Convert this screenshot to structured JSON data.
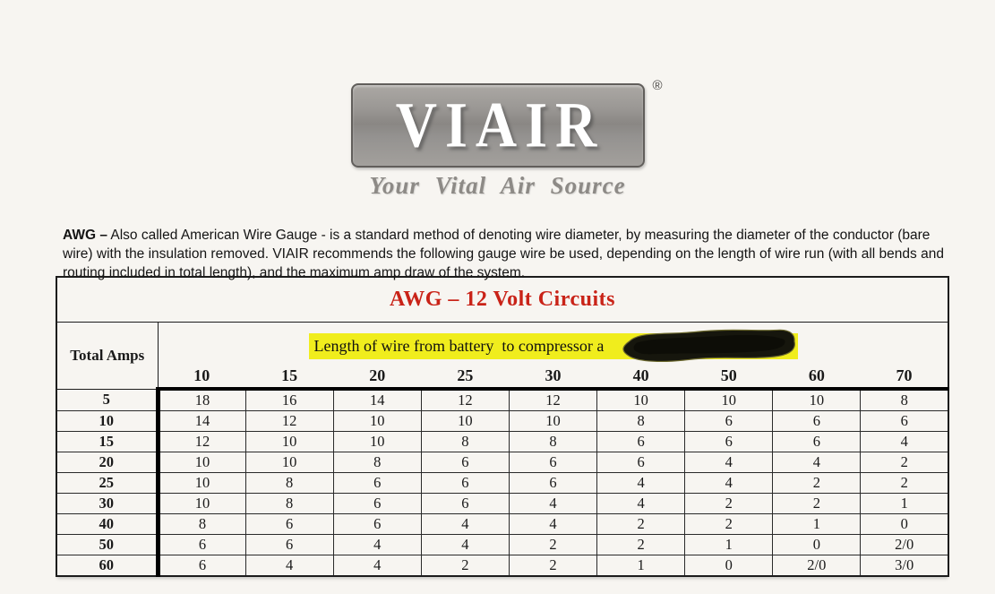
{
  "logo": {
    "brand": "VIAIR",
    "registered_mark": "®",
    "tagline": "Your Vital Air Source",
    "colors": {
      "box_gray": "#8a8784",
      "letters": "#ffffff",
      "tagline_gray": "#8d8a86"
    }
  },
  "intro": {
    "lead": "AWG –",
    "body": " Also called American Wire Gauge - is a standard method of denoting wire diameter, by measuring the diameter of the conductor (bare wire) with the insulation removed. VIAIR recommends the following gauge wire be used, depending on the length of wire run (with all bends and routing included in total length), and the maximum amp draw of the system."
  },
  "table": {
    "title": "AWG – 12 Volt Circuits",
    "title_color": "#c92318",
    "corner_header": "Total Amps",
    "span_header": {
      "text": "Length of wire from battery  to compressor a",
      "highlight_color": "#f0ed1d",
      "redaction": "black-marker-scribble"
    },
    "column_headers": [
      "10",
      "15",
      "20",
      "25",
      "30",
      "40",
      "50",
      "60",
      "70"
    ],
    "rows": [
      {
        "label": "5",
        "values": [
          "18",
          "16",
          "14",
          "12",
          "12",
          "10",
          "10",
          "10",
          "8"
        ]
      },
      {
        "label": "10",
        "values": [
          "14",
          "12",
          "10",
          "10",
          "10",
          "8",
          "6",
          "6",
          "6"
        ]
      },
      {
        "label": "15",
        "values": [
          "12",
          "10",
          "10",
          "8",
          "8",
          "6",
          "6",
          "6",
          "4"
        ]
      },
      {
        "label": "20",
        "values": [
          "10",
          "10",
          "8",
          "6",
          "6",
          "6",
          "4",
          "4",
          "2"
        ]
      },
      {
        "label": "25",
        "values": [
          "10",
          "8",
          "6",
          "6",
          "6",
          "4",
          "4",
          "2",
          "2"
        ]
      },
      {
        "label": "30",
        "values": [
          "10",
          "8",
          "6",
          "6",
          "4",
          "4",
          "2",
          "2",
          "1"
        ]
      },
      {
        "label": "40",
        "values": [
          "8",
          "6",
          "6",
          "4",
          "4",
          "2",
          "2",
          "1",
          "0"
        ]
      },
      {
        "label": "50",
        "values": [
          "6",
          "6",
          "4",
          "4",
          "2",
          "2",
          "1",
          "0",
          "2/0"
        ]
      },
      {
        "label": "60",
        "values": [
          "6",
          "4",
          "4",
          "2",
          "2",
          "1",
          "0",
          "2/0",
          "3/0"
        ]
      }
    ]
  }
}
